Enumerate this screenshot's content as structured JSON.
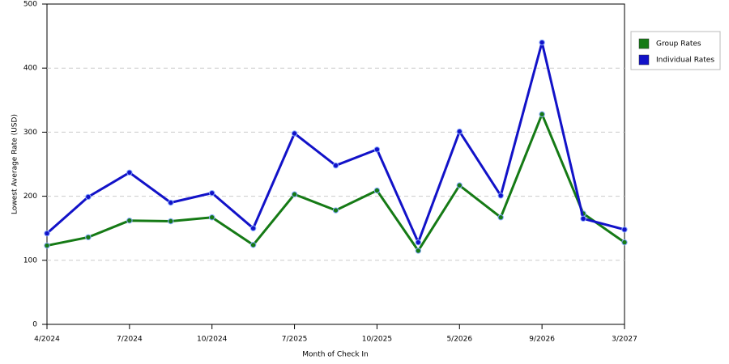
{
  "chart_data": {
    "type": "line",
    "y_label": "Lowest Average Rate (USD)",
    "x_label": "Month of Check In",
    "categories": [
      "4/2024",
      null,
      "7/2024",
      null,
      "10/2024",
      null,
      "7/2025",
      null,
      "10/2025",
      null,
      "5/2026",
      null,
      "9/2026",
      null,
      "3/2027"
    ],
    "series": [
      {
        "name": "Group Rates",
        "color": "#157a15",
        "values": [
          123,
          136,
          162,
          161,
          167,
          124,
          203,
          178,
          209,
          115,
          217,
          167,
          328,
          173,
          128
        ]
      },
      {
        "name": "Individual Rates",
        "color": "#1212c8",
        "values": [
          142,
          199,
          237,
          190,
          205,
          150,
          298,
          248,
          273,
          128,
          301,
          201,
          440,
          165,
          148
        ]
      }
    ],
    "ylim": [
      0,
      500
    ],
    "yticks": [
      0,
      100,
      200,
      300,
      400,
      500
    ],
    "grid": true,
    "legend": "right"
  }
}
